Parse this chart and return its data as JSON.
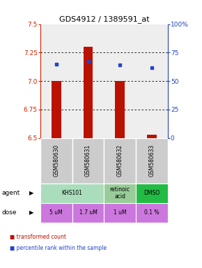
{
  "title": "GDS4912 / 1389591_at",
  "samples": [
    "GSM580630",
    "GSM580631",
    "GSM580632",
    "GSM580633"
  ],
  "bar_values": [
    7.0,
    7.3,
    7.0,
    6.53
  ],
  "bar_base": 6.5,
  "blue_dot_values": [
    7.15,
    7.17,
    7.14,
    7.12
  ],
  "ylim_left": [
    6.5,
    7.5
  ],
  "yticks_left": [
    6.5,
    6.75,
    7.0,
    7.25,
    7.5
  ],
  "yticks_right": [
    0,
    25,
    50,
    75,
    100
  ],
  "bar_color": "#bb1100",
  "dot_color": "#2244cc",
  "dose_labels": [
    "5 uM",
    "1.7 uM",
    "1 uM",
    "0.1 %"
  ],
  "dose_color": "#cc77dd",
  "left_axis_color": "#cc2200",
  "right_axis_color": "#2244bb",
  "agent_data": [
    {
      "start": 0,
      "end": 2,
      "text": "KHS101",
      "color": "#aaddbb"
    },
    {
      "start": 2,
      "end": 3,
      "text": "retinoic\nacid",
      "color": "#99cc99"
    },
    {
      "start": 3,
      "end": 4,
      "text": "DMSO",
      "color": "#22bb44"
    }
  ],
  "legend_red": "transformed count",
  "legend_blue": "percentile rank within the sample",
  "background_color": "#ffffff",
  "plot_bg_color": "#eeeeee",
  "sample_bg_color": "#cccccc"
}
